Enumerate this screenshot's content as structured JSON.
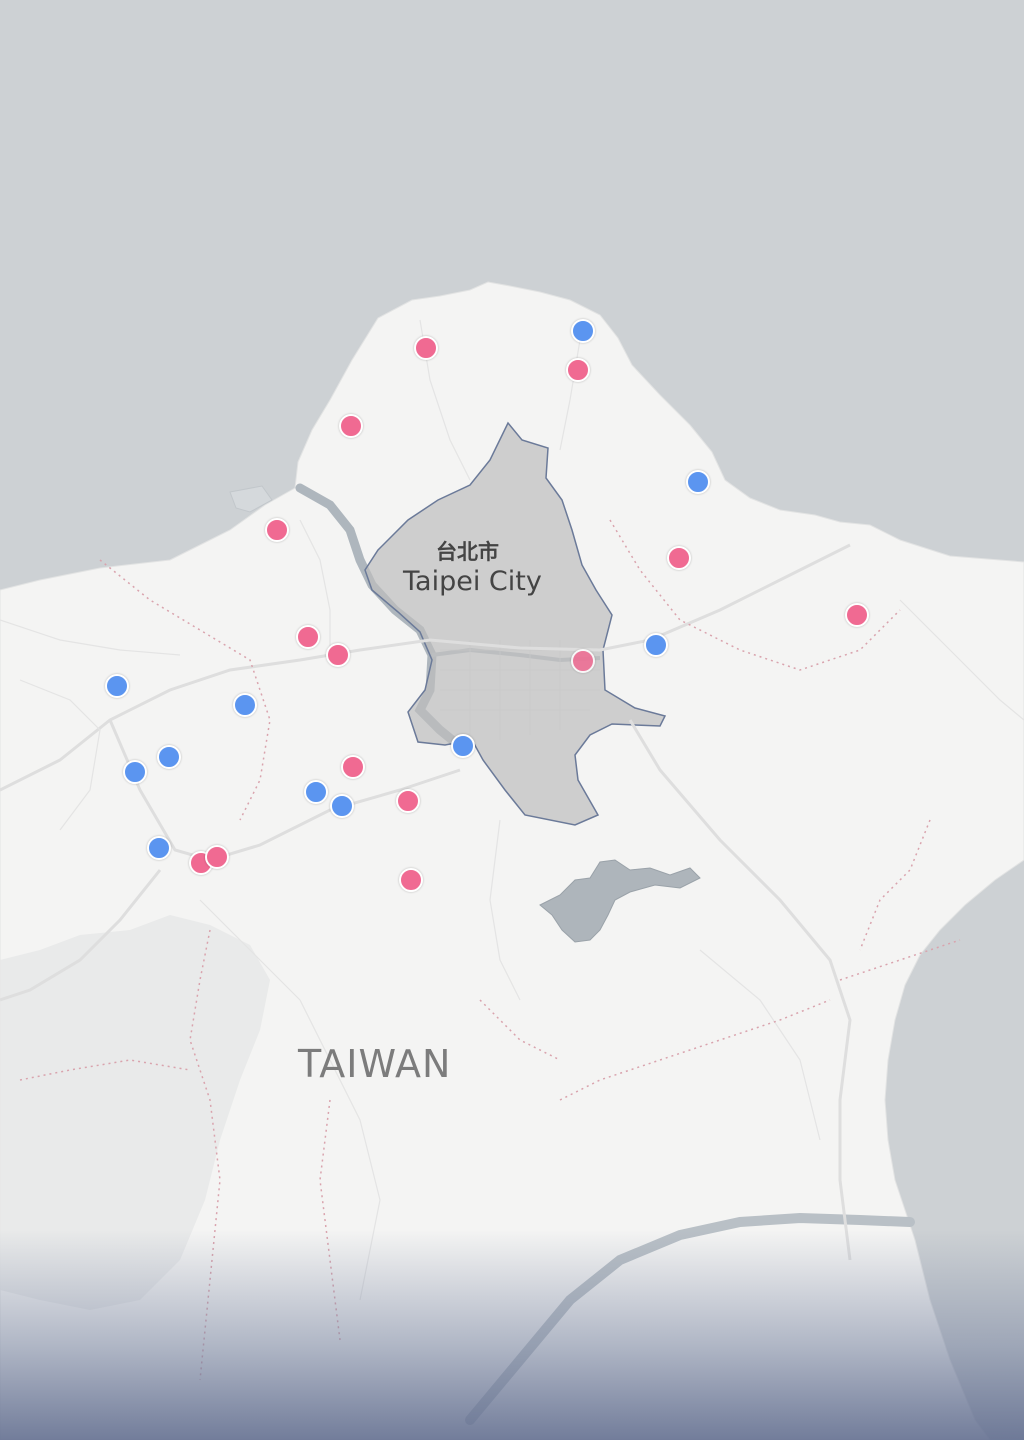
{
  "map": {
    "city_label_zh": "台北市",
    "city_label_en": "Taipei City",
    "region_label": "TAIWAN",
    "colors": {
      "sea": "#cdd1d4",
      "land": "#f4f4f3",
      "highlight_fill": "#bdbdbd",
      "highlight_stroke": "#6b7a99",
      "marker_pink": "#f06a92",
      "marker_blue": "#5b95f0"
    }
  },
  "markers": [
    {
      "id": "m1",
      "color": "pink"
    },
    {
      "id": "m2",
      "color": "blue"
    },
    {
      "id": "m3",
      "color": "pink"
    },
    {
      "id": "m4",
      "color": "pink"
    },
    {
      "id": "m5",
      "color": "blue"
    },
    {
      "id": "m6",
      "color": "pink"
    },
    {
      "id": "m7",
      "color": "pink"
    },
    {
      "id": "m8",
      "color": "pink"
    },
    {
      "id": "m9",
      "color": "pink"
    },
    {
      "id": "m10",
      "color": "pink"
    },
    {
      "id": "m11",
      "color": "blue"
    },
    {
      "id": "m12",
      "color": "pink"
    },
    {
      "id": "m13",
      "color": "blue"
    },
    {
      "id": "m14",
      "color": "blue"
    },
    {
      "id": "m15",
      "color": "blue"
    },
    {
      "id": "m16",
      "color": "blue"
    },
    {
      "id": "m17",
      "color": "pink"
    },
    {
      "id": "m18",
      "color": "blue"
    },
    {
      "id": "m19",
      "color": "blue"
    },
    {
      "id": "m20",
      "color": "blue"
    },
    {
      "id": "m21",
      "color": "pink"
    },
    {
      "id": "m22",
      "color": "blue"
    },
    {
      "id": "m23",
      "color": "pink"
    },
    {
      "id": "m24",
      "color": "pink"
    },
    {
      "id": "m25",
      "color": "pink"
    }
  ]
}
